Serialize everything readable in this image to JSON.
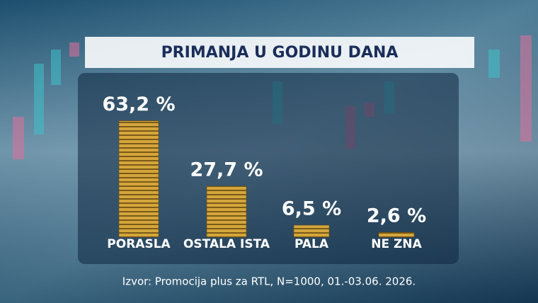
{
  "chart_data": {
    "type": "bar",
    "title": "PRIMANJA U GODINU DANA",
    "categories": [
      "PORASLA",
      "OSTALA ISTA",
      "PALA",
      "NE ZNA"
    ],
    "values": [
      63.2,
      27.7,
      6.5,
      2.6
    ],
    "value_labels": [
      "63,2 %",
      "27,7 %",
      "6,5 %",
      "2,6 %"
    ],
    "color": "#d4a63c",
    "source": "Izvor: Promocija plus za RTL, N=1000, 01.-03.06. 2026."
  }
}
